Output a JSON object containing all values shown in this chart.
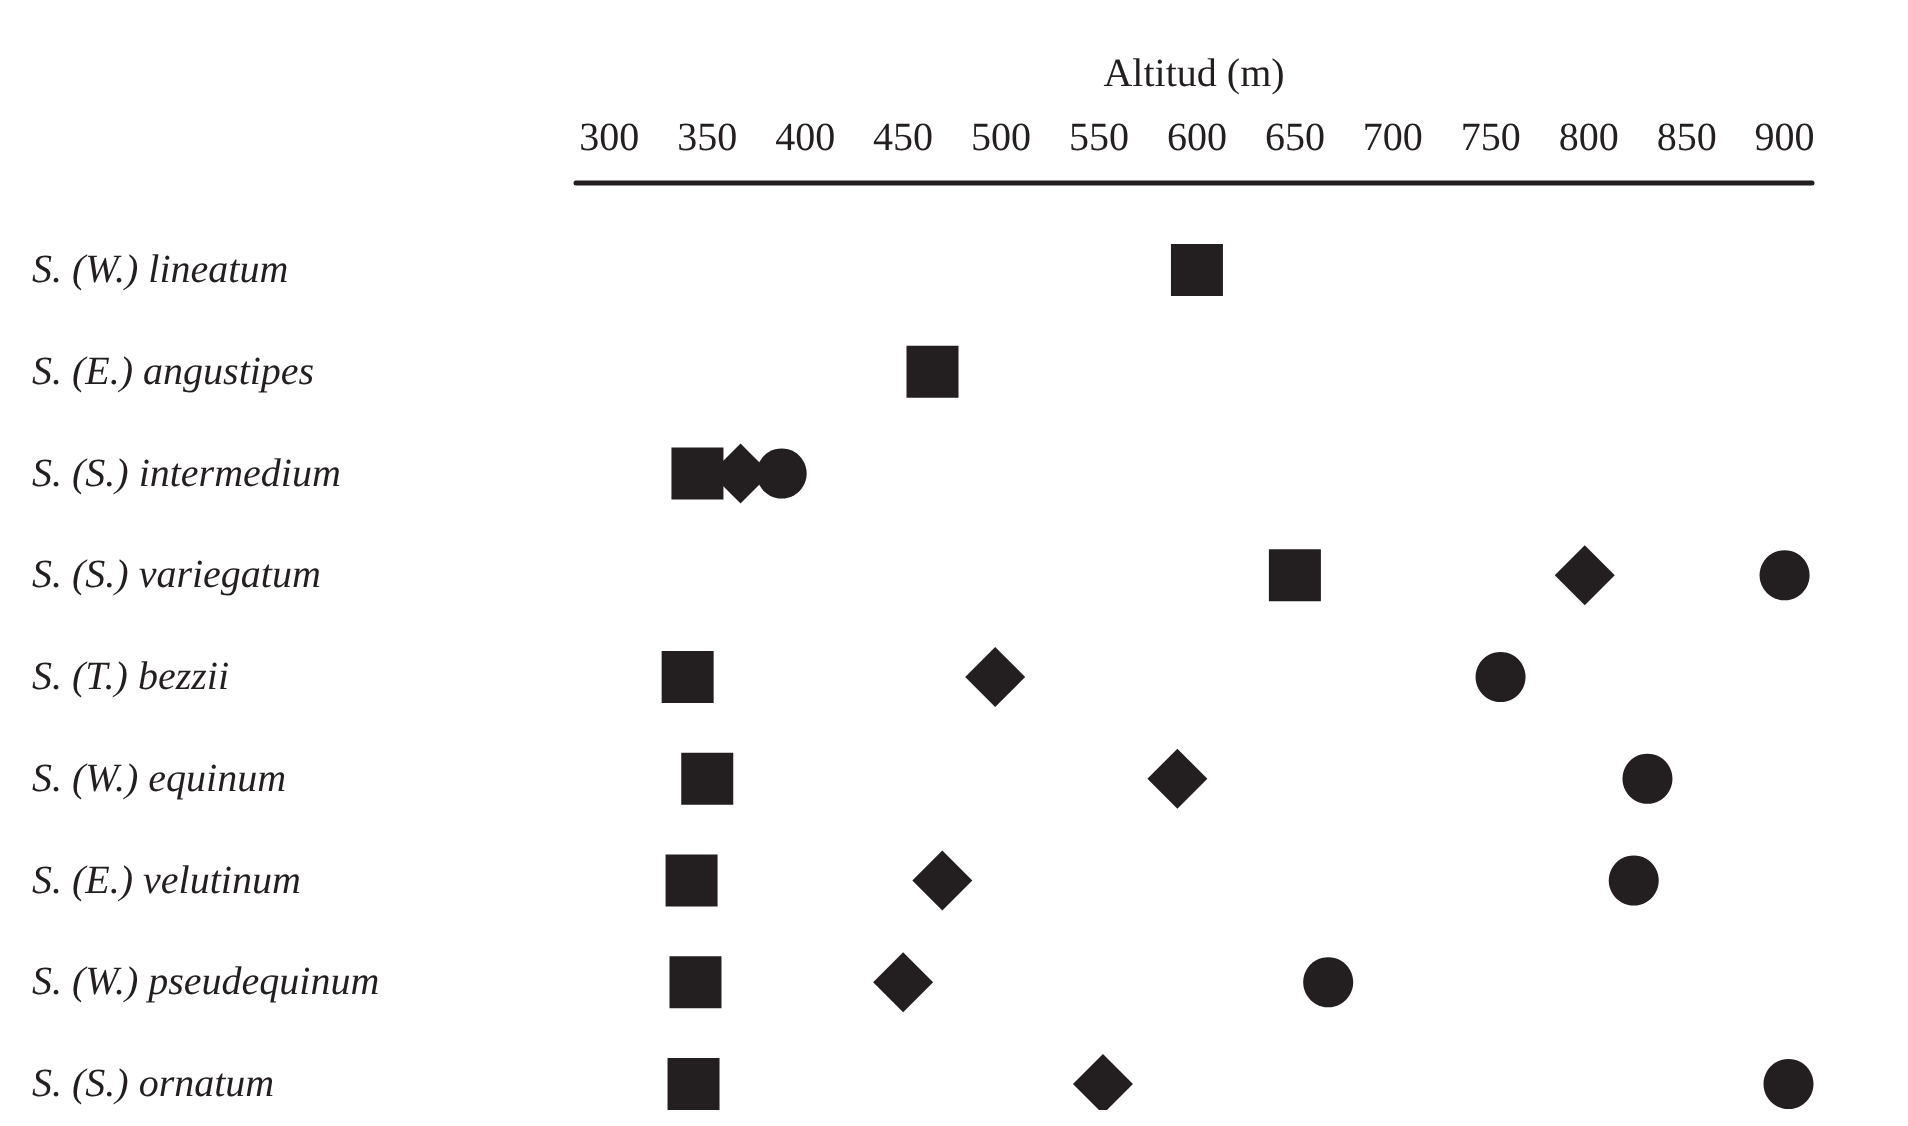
{
  "chart_data": {
    "type": "scatter",
    "orientation": "horizontal",
    "xlabel": "Altitud (m)",
    "categories": [
      "S. (W.) lineatum",
      "S. (E.) angustipes",
      "S. (S.) intermedium",
      "S. (S.) variegatum",
      "S. (T.) bezzii",
      "S. (W.) equinum",
      "S. (E.) velutinum",
      "S. (W.) pseudequinum",
      "S. (S.) ornatum"
    ],
    "xlim": [
      283,
      914
    ],
    "xticks": [
      300,
      350,
      400,
      450,
      500,
      550,
      600,
      650,
      700,
      750,
      800,
      850,
      900
    ],
    "series": [
      {
        "color": "#231f20",
        "marker": "square",
        "values": [
          600,
          465,
          345,
          650,
          340,
          350,
          342,
          344,
          343
        ]
      },
      {
        "color": "#231f20",
        "marker": "diamond",
        "values": [
          null,
          null,
          367,
          798,
          497,
          590,
          470,
          450,
          552
        ]
      },
      {
        "color": "#231f20",
        "marker": "circle",
        "values": [
          null,
          null,
          388,
          900,
          755,
          830,
          823,
          667,
          902
        ]
      }
    ],
    "grid": false
  }
}
